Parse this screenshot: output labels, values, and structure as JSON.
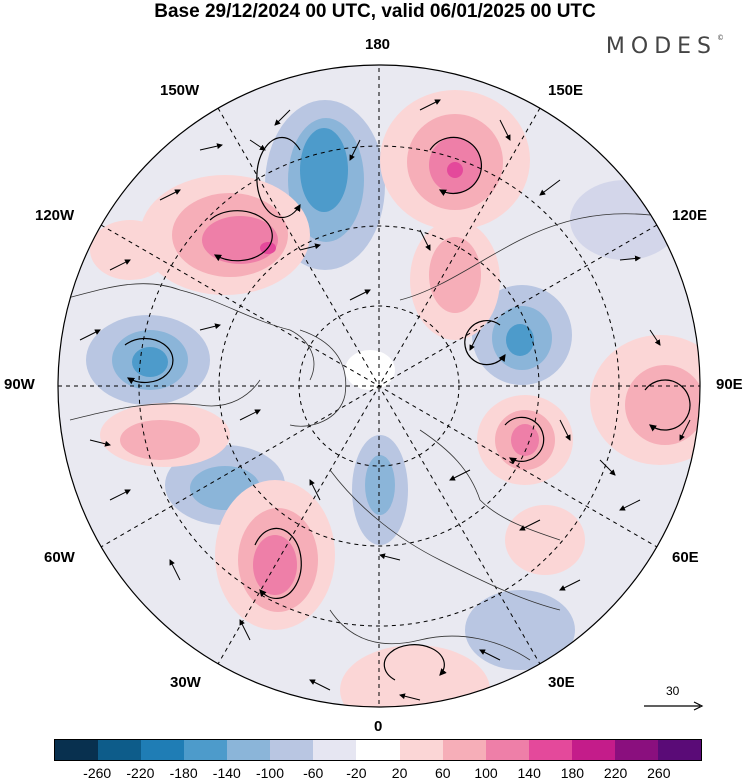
{
  "header": {
    "title": "Base 29/12/2024 00 UTC, valid 06/01/2025 00 UTC",
    "brand": "MODES",
    "brand_mark": "©"
  },
  "map": {
    "projection": "north-polar-stereographic",
    "longitude_labels": {
      "lon_180": "180",
      "lon_150w": "150W",
      "lon_150e": "150E",
      "lon_120w": "120W",
      "lon_120e": "120E",
      "lon_90w": "90W",
      "lon_90e": "90E",
      "lon_60w": "60W",
      "lon_60e": "60E",
      "lon_30w": "30W",
      "lon_30e": "30E",
      "lon_0": "0"
    },
    "reference_vector_label": "30"
  },
  "colorbar": {
    "colors": [
      "#08304f",
      "#0d5c8a",
      "#1f7db5",
      "#4d9bcb",
      "#8bb5d9",
      "#b9c6e2",
      "#e6e6f2",
      "#ffffff",
      "#fbd6d6",
      "#f6aeb8",
      "#ee7fa8",
      "#e4499b",
      "#c41c8a",
      "#8a0f7e",
      "#5a0b77"
    ],
    "tick_labels": [
      "-260",
      "-220",
      "-180",
      "-140",
      "-100",
      "-60",
      "-20",
      "20",
      "60",
      "100",
      "140",
      "180",
      "220",
      "260"
    ]
  }
}
